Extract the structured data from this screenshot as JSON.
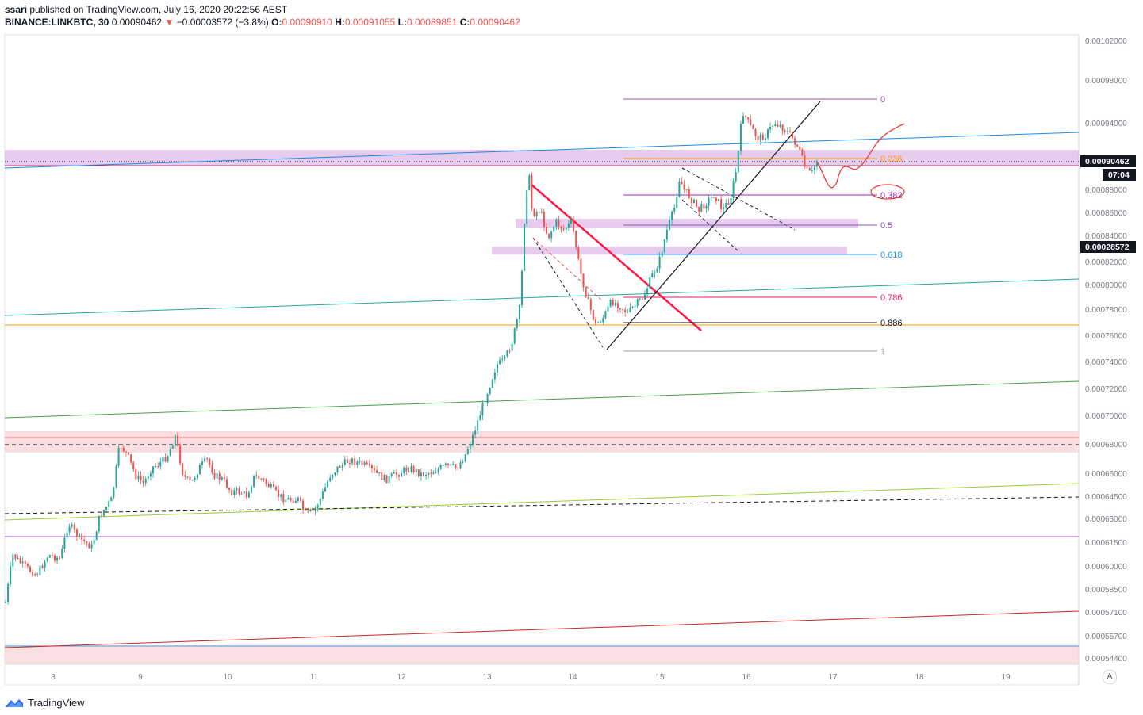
{
  "header": {
    "author": "ssari",
    "published": "published on TradingView.com, July 16, 2020 20:22:56 AEST",
    "symbol": "BINANCE:LINKBTC, 30",
    "price": "0.00090462",
    "change": "−0.00003572 (−3.8%)",
    "o_label": "O:",
    "o_value": "0.00090910",
    "h_label": "H:",
    "h_value": "0.00091055",
    "l_label": "L:",
    "l_value": "0.00089851",
    "c_label": "C:",
    "c_value": "0.00090462"
  },
  "price_axis": {
    "ticks": [
      "0.00102000",
      "0.00098000",
      "0.00094000",
      "0.00088000",
      "0.00086000",
      "0.00084000",
      "0.00082000",
      "0.00080000",
      "0.00078000",
      "0.00076000",
      "0.00074000",
      "0.00072000",
      "0.00070000",
      "0.00068000",
      "0.00066000",
      "0.00064500",
      "0.00063000",
      "0.00061500",
      "0.00060000",
      "0.00058500",
      "0.00057100",
      "0.00055700",
      "0.00054400"
    ],
    "last_price": "0.00090462",
    "countdown": "07:04",
    "measure_label": "0.00028572"
  },
  "time_axis": {
    "ticks": [
      "8",
      "9",
      "10",
      "11",
      "12",
      "13",
      "14",
      "15",
      "16",
      "17",
      "18",
      "19"
    ]
  },
  "fib": {
    "levels": [
      "0",
      "0.236",
      "0.382",
      "0.5",
      "0.618",
      "0.786",
      "0.886",
      "1"
    ],
    "colors": [
      "#ab47bc",
      "#ff9800",
      "#9c27b0",
      "#7e57c2",
      "#2196f3",
      "#e91e63",
      "#131722",
      "#9e9e9e"
    ]
  },
  "colors": {
    "up": "#26a69a",
    "down": "#ef5350",
    "highlight": "#e1bee7",
    "support_zone": "#f8d7da"
  },
  "footer": {
    "brand": "TradingView"
  },
  "auto_button": "A"
}
